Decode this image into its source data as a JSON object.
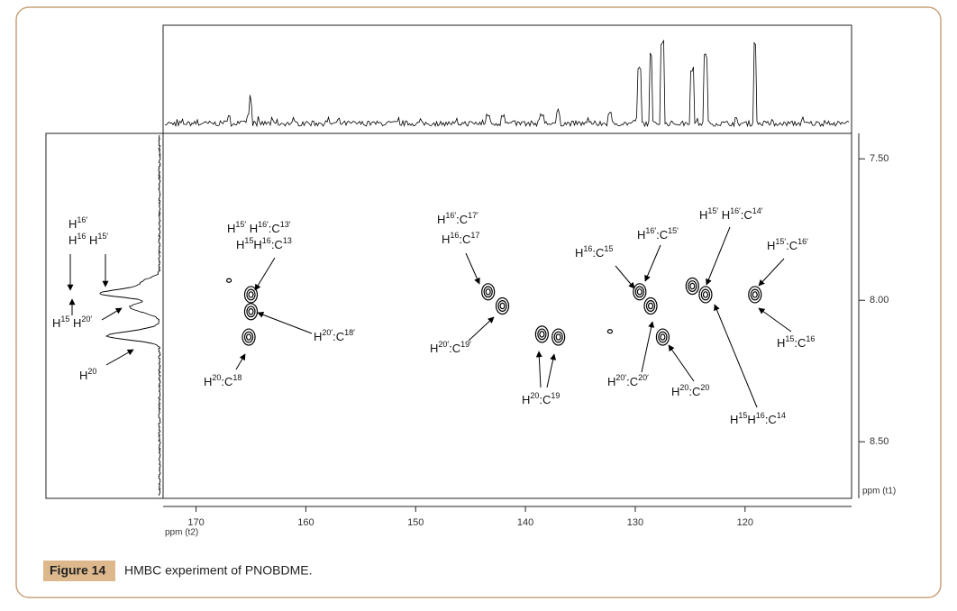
{
  "chart_data": {
    "type": "contour",
    "x": [
      165.0,
      165.0,
      165.2,
      167.0,
      143.4,
      142.1,
      138.5,
      137.0,
      132.3,
      129.6,
      128.6,
      127.5,
      124.8,
      123.6,
      119.1
    ],
    "y": [
      7.98,
      8.04,
      8.13,
      7.93,
      7.97,
      8.02,
      8.12,
      8.13,
      8.11,
      7.97,
      8.02,
      8.13,
      7.95,
      7.98,
      7.98
    ],
    "xlim": [
      173,
      110.3
    ],
    "ylim": [
      7.41,
      8.7
    ],
    "xticks": [
      170,
      160,
      150,
      140,
      130,
      120
    ],
    "yticks": [
      {
        "value": 7.5,
        "label": "7.50"
      },
      {
        "value": 8.0,
        "label": "8.00"
      },
      {
        "value": 8.5,
        "label": "8.50"
      }
    ],
    "xlabel": "ppm (t2)",
    "ylabel": "ppm (t1)",
    "color": "#000000",
    "annotations": [
      "H16′",
      "H16 H15′",
      "H15 H20′",
      "H20",
      "H15′ H16′:C13′",
      "H15H16:C13",
      "H20′:C18′",
      "H20:C18",
      "H16′:C17′",
      "H16:C17",
      "H20′:C19′",
      "H20:C19",
      "H16:C15",
      "H16′:C15′",
      "H15′ H16′:C14′",
      "H15′:C16′",
      "H20′:C20′",
      "H20:C20",
      "H15:C16",
      "H15H16:C14"
    ]
  },
  "caption": {
    "label": "Figure 14",
    "text": "HMBC experiment of PNOBDME."
  }
}
